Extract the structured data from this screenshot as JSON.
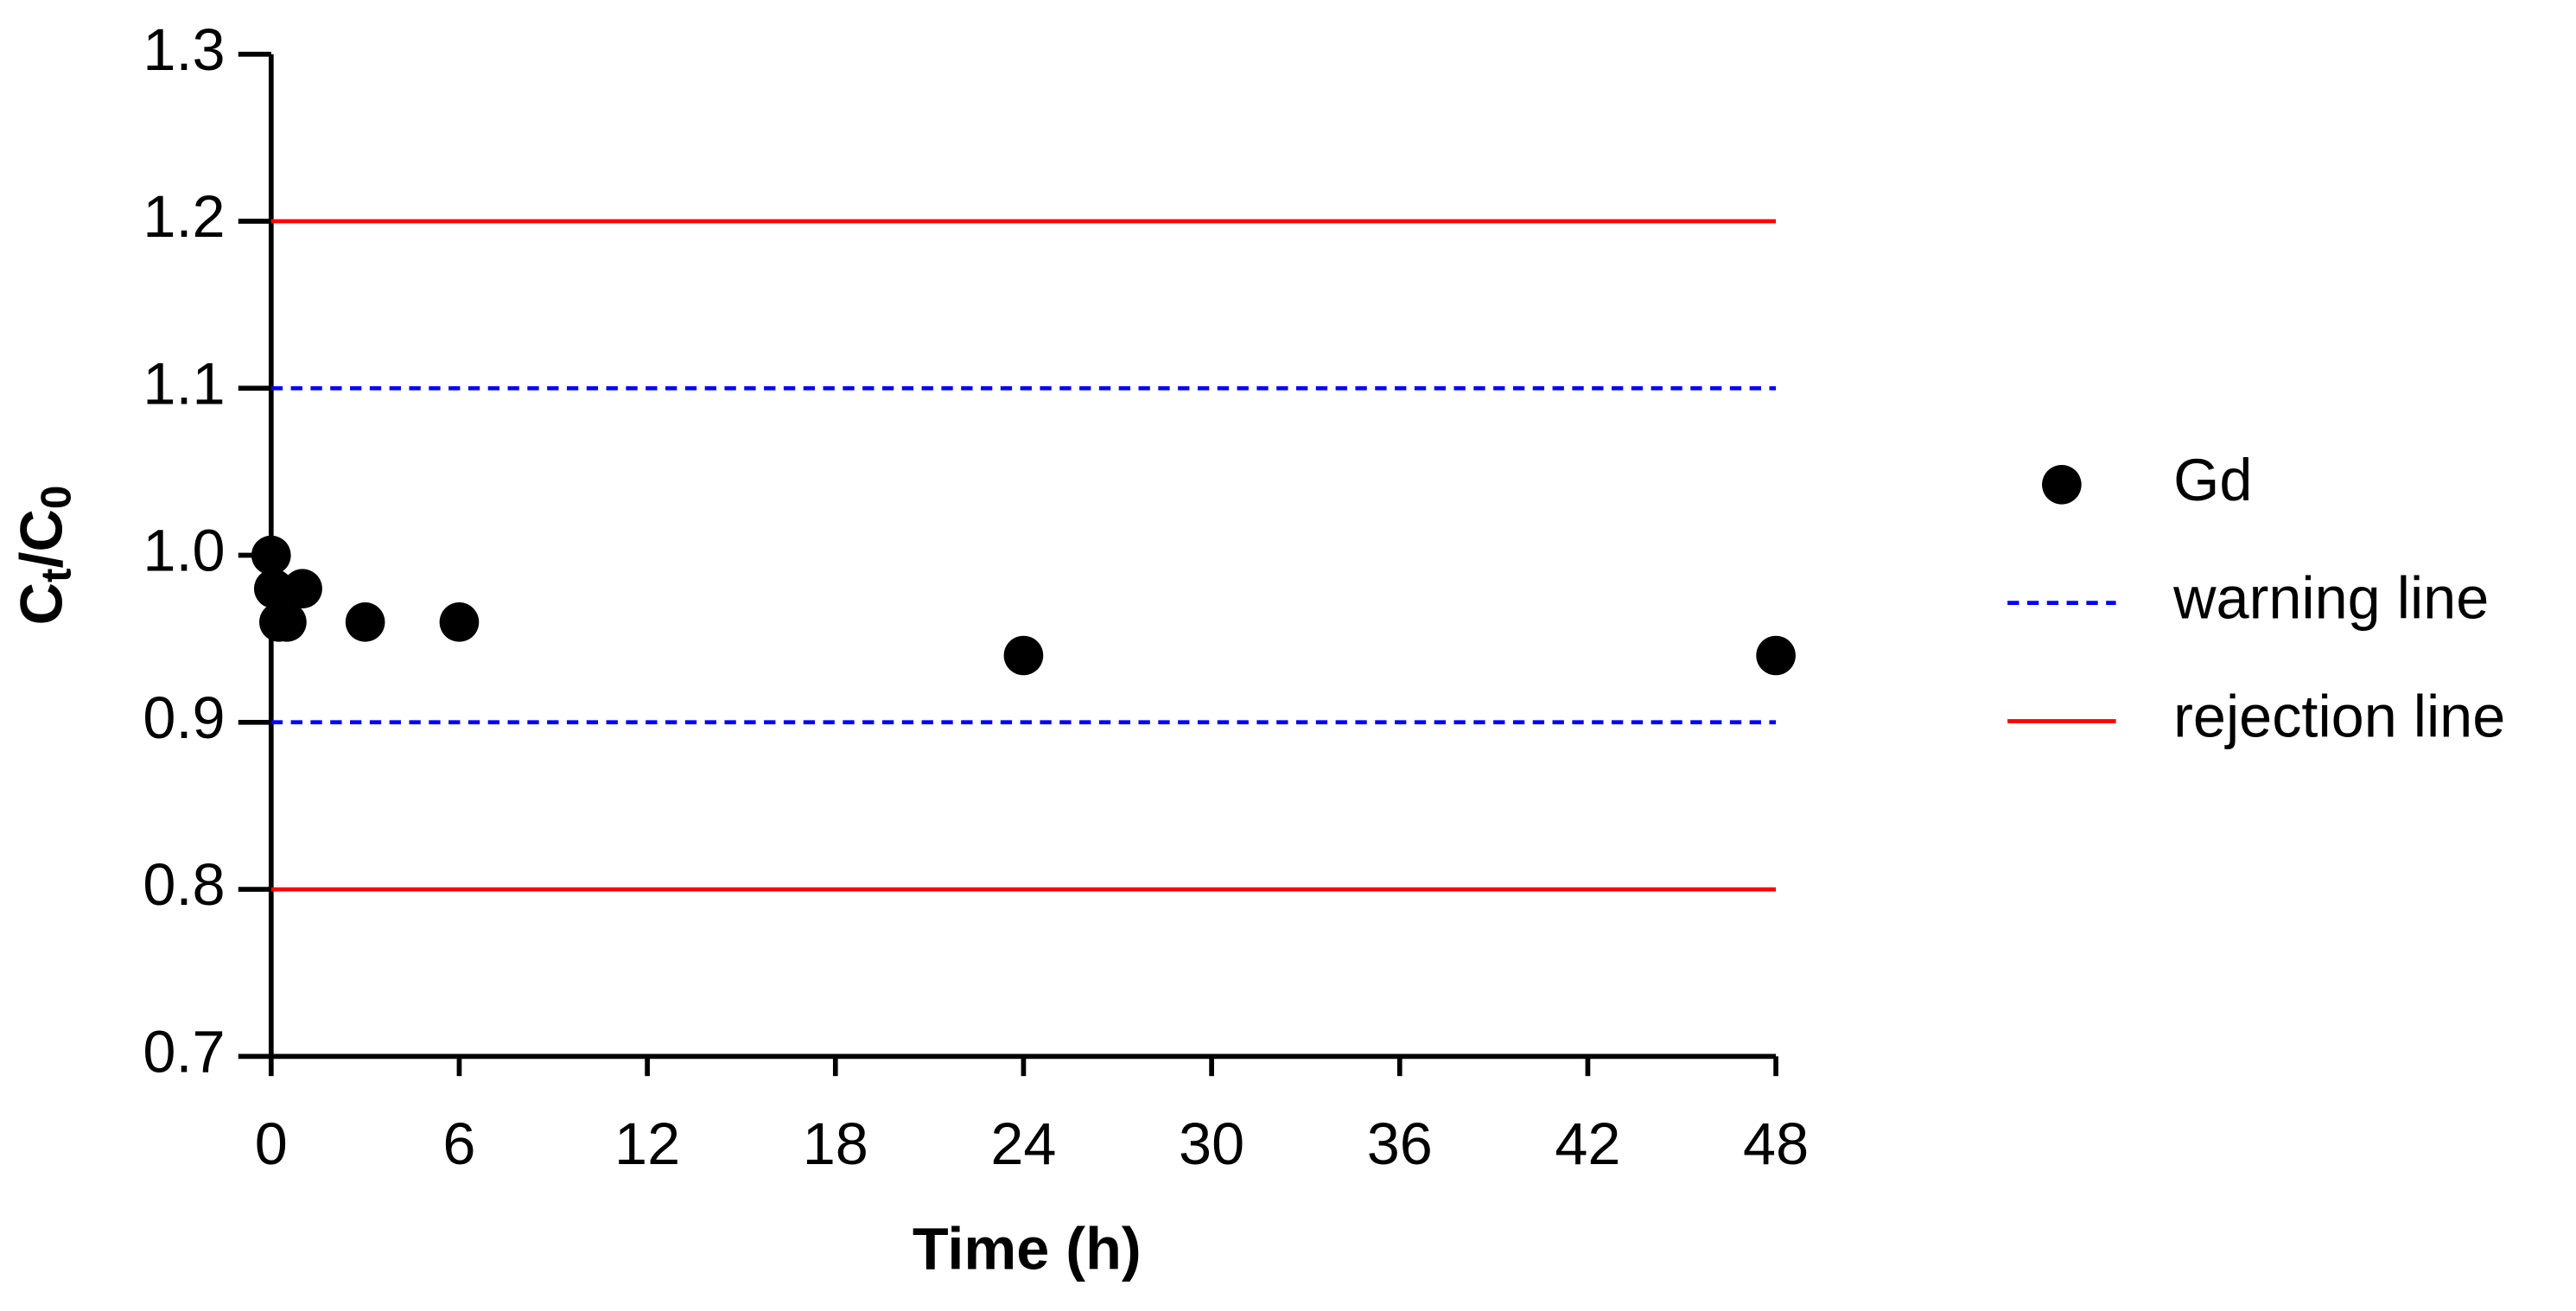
{
  "chart_data": {
    "type": "scatter",
    "xlabel": "Time (h)",
    "ylabel_parts": [
      "C",
      "t",
      "/C",
      "0"
    ],
    "xlim": [
      0,
      48
    ],
    "ylim": [
      0.7,
      1.3
    ],
    "xticks": [
      0,
      6,
      12,
      18,
      24,
      30,
      36,
      42,
      48
    ],
    "yticks": [
      0.7,
      0.8,
      0.9,
      {
        "value": 1,
        "label": "1.0"
      },
      1.1,
      1.2,
      1.3
    ],
    "series": [
      {
        "name": "Gd",
        "color": "#000000",
        "x": [
          0,
          0.083,
          0.25,
          0.5,
          1,
          3,
          6,
          24,
          48
        ],
        "values": [
          1.0,
          0.98,
          0.96,
          0.96,
          0.98,
          0.96,
          0.96,
          0.94,
          0.94
        ]
      }
    ],
    "hlines": [
      {
        "name": "warning line",
        "color": "#0000ff",
        "dashed": true,
        "values": [
          0.9,
          1.1
        ]
      },
      {
        "name": "rejection line",
        "color": "#ff0000",
        "dashed": false,
        "values": [
          0.8,
          1.2
        ]
      }
    ]
  }
}
